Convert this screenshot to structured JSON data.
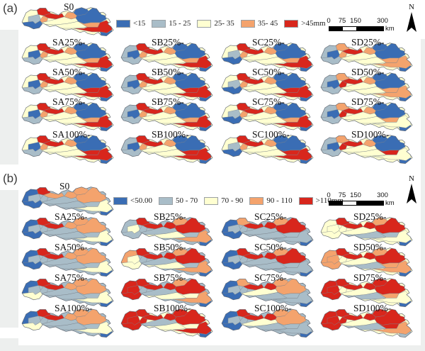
{
  "figure": {
    "palette": [
      "#3a6db4",
      "#a9bdc8",
      "#ffffd1",
      "#f4a36d",
      "#d8261c"
    ],
    "panels": [
      {
        "key": "a",
        "label": "(a)",
        "north_label": "N",
        "legend": [
          {
            "label": "<15",
            "color": "#3a6db4"
          },
          {
            "label": "15 - 25",
            "color": "#a9bdc8"
          },
          {
            "label": "25- 35",
            "color": "#ffffd1"
          },
          {
            "label": "35- 45",
            "color": "#f4a36d"
          },
          {
            "label": ">45mm",
            "color": "#d8261c"
          }
        ],
        "scalebar": {
          "ticks": [
            "0",
            "75",
            "150",
            "300"
          ],
          "unit": "km"
        },
        "maps": [
          {
            "label": "S0",
            "classes": [
              2,
              2,
              1,
              0,
              4,
              4,
              3,
              2,
              2,
              3,
              0,
              0,
              3,
              4,
              0
            ]
          },
          {
            "label": "SA25%-",
            "classes": [
              2,
              2,
              0,
              1,
              4,
              4,
              3,
              2,
              2,
              3,
              0,
              0,
              3,
              4,
              0
            ]
          },
          {
            "label": "SA50%-",
            "classes": [
              2,
              2,
              0,
              1,
              4,
              4,
              3,
              2,
              2,
              3,
              0,
              0,
              4,
              4,
              0
            ]
          },
          {
            "label": "SA75%-",
            "classes": [
              2,
              2,
              0,
              1,
              4,
              4,
              3,
              2,
              2,
              3,
              0,
              0,
              3,
              4,
              0
            ]
          },
          {
            "label": "SA100%-",
            "classes": [
              2,
              2,
              0,
              1,
              4,
              4,
              3,
              2,
              2,
              3,
              0,
              0,
              4,
              4,
              0
            ]
          },
          {
            "label": "SB25%-",
            "classes": [
              2,
              1,
              0,
              1,
              4,
              4,
              3,
              2,
              2,
              3,
              0,
              0,
              3,
              4,
              0
            ]
          },
          {
            "label": "SB50%-",
            "classes": [
              2,
              1,
              0,
              1,
              4,
              4,
              3,
              2,
              2,
              3,
              0,
              0,
              4,
              4,
              0
            ]
          },
          {
            "label": "SB75%-",
            "classes": [
              2,
              1,
              0,
              1,
              4,
              4,
              3,
              2,
              2,
              3,
              0,
              0,
              3,
              4,
              0
            ]
          },
          {
            "label": "SB100%-",
            "classes": [
              2,
              1,
              0,
              1,
              4,
              4,
              3,
              2,
              2,
              3,
              0,
              0,
              4,
              4,
              0
            ]
          },
          {
            "label": "SC25%-",
            "classes": [
              2,
              2,
              1,
              0,
              4,
              4,
              3,
              2,
              2,
              3,
              0,
              0,
              3,
              4,
              0
            ]
          },
          {
            "label": "SC50%-",
            "classes": [
              2,
              2,
              1,
              0,
              4,
              4,
              3,
              2,
              2,
              3,
              0,
              0,
              4,
              4,
              0
            ]
          },
          {
            "label": "SC75%-",
            "classes": [
              2,
              2,
              1,
              0,
              4,
              4,
              3,
              2,
              2,
              3,
              0,
              0,
              3,
              4,
              0
            ]
          },
          {
            "label": "SC100%-",
            "classes": [
              2,
              2,
              1,
              0,
              4,
              4,
              3,
              2,
              2,
              3,
              0,
              0,
              4,
              4,
              0
            ]
          },
          {
            "label": "SD25%-",
            "classes": [
              2,
              1,
              0,
              1,
              3,
              4,
              3,
              2,
              2,
              3,
              0,
              0,
              3,
              3,
              0
            ]
          },
          {
            "label": "SD50%-",
            "classes": [
              2,
              1,
              0,
              1,
              3,
              4,
              4,
              2,
              2,
              3,
              0,
              0,
              3,
              3,
              0
            ]
          },
          {
            "label": "SD75%-",
            "classes": [
              2,
              1,
              0,
              1,
              3,
              4,
              4,
              2,
              2,
              3,
              0,
              0,
              3,
              2,
              0
            ]
          },
          {
            "label": "SD100%-",
            "classes": [
              2,
              1,
              0,
              1,
              3,
              4,
              4,
              2,
              2,
              3,
              0,
              0,
              4,
              2,
              0
            ]
          }
        ]
      },
      {
        "key": "b",
        "label": "(b)",
        "north_label": "N",
        "legend": [
          {
            "label": "<50.00",
            "color": "#3a6db4"
          },
          {
            "label": "50 - 70",
            "color": "#a9bdc8"
          },
          {
            "label": "70 - 90",
            "color": "#ffffd1"
          },
          {
            "label": "90 - 110",
            "color": "#f4a36d"
          },
          {
            "label": ">110mm",
            "color": "#d8261c"
          }
        ],
        "scalebar": {
          "ticks": [
            "0",
            "75",
            "150",
            "300"
          ],
          "unit": "km"
        },
        "maps": [
          {
            "label": "S0",
            "classes": [
              1,
              0,
              1,
              0,
              4,
              3,
              1,
              1,
              1,
              3,
              3,
              3,
              1,
              2,
              0
            ]
          },
          {
            "label": "SA25%-",
            "classes": [
              1,
              0,
              1,
              0,
              4,
              4,
              1,
              1,
              1,
              3,
              3,
              3,
              1,
              2,
              0
            ]
          },
          {
            "label": "SA50%-",
            "classes": [
              1,
              0,
              1,
              0,
              4,
              4,
              1,
              1,
              1,
              3,
              3,
              3,
              1,
              2,
              0
            ]
          },
          {
            "label": "SA75%-",
            "classes": [
              1,
              0,
              1,
              2,
              4,
              4,
              1,
              1,
              1,
              3,
              3,
              3,
              1,
              2,
              0
            ]
          },
          {
            "label": "SA100%-",
            "classes": [
              1,
              0,
              1,
              2,
              4,
              4,
              1,
              1,
              1,
              3,
              3,
              3,
              1,
              2,
              0
            ]
          },
          {
            "label": "SB25%-",
            "classes": [
              1,
              1,
              2,
              1,
              4,
              4,
              1,
              1,
              2,
              4,
              3,
              4,
              1,
              3,
              0
            ]
          },
          {
            "label": "SB50%-",
            "classes": [
              1,
              3,
              2,
              2,
              4,
              4,
              1,
              1,
              2,
              4,
              3,
              4,
              1,
              3,
              0
            ]
          },
          {
            "label": "SB75%-",
            "classes": [
              1,
              4,
              4,
              4,
              4,
              4,
              1,
              1,
              2,
              4,
              3,
              4,
              2,
              3,
              0
            ]
          },
          {
            "label": "SB100%-",
            "classes": [
              2,
              4,
              4,
              4,
              4,
              4,
              4,
              1,
              2,
              4,
              4,
              4,
              2,
              4,
              0
            ]
          },
          {
            "label": "SC25%-",
            "classes": [
              1,
              0,
              1,
              0,
              3,
              4,
              1,
              1,
              1,
              4,
              3,
              4,
              1,
              1,
              0
            ]
          },
          {
            "label": "SC50%-",
            "classes": [
              1,
              0,
              1,
              0,
              4,
              4,
              1,
              1,
              1,
              4,
              3,
              4,
              1,
              1,
              0
            ]
          },
          {
            "label": "SC75%-",
            "classes": [
              1,
              0,
              1,
              0,
              3,
              4,
              1,
              2,
              1,
              4,
              3,
              3,
              1,
              1,
              0
            ]
          },
          {
            "label": "SC100%-",
            "classes": [
              1,
              0,
              1,
              0,
              4,
              4,
              1,
              2,
              1,
              4,
              3,
              3,
              1,
              1,
              0
            ]
          },
          {
            "label": "SD25%-",
            "classes": [
              2,
              2,
              2,
              2,
              4,
              4,
              2,
              2,
              1,
              4,
              3,
              4,
              1,
              2,
              0
            ]
          },
          {
            "label": "SD50%-",
            "classes": [
              2,
              3,
              3,
              3,
              4,
              4,
              2,
              2,
              1,
              4,
              3,
              4,
              3,
              3,
              0
            ]
          },
          {
            "label": "SD75%-",
            "classes": [
              2,
              4,
              4,
              4,
              4,
              4,
              2,
              2,
              1,
              4,
              4,
              4,
              3,
              2,
              0
            ]
          },
          {
            "label": "SD100%-",
            "classes": [
              2,
              4,
              4,
              4,
              4,
              4,
              4,
              2,
              1,
              4,
              4,
              4,
              4,
              3,
              1
            ]
          }
        ]
      }
    ]
  }
}
